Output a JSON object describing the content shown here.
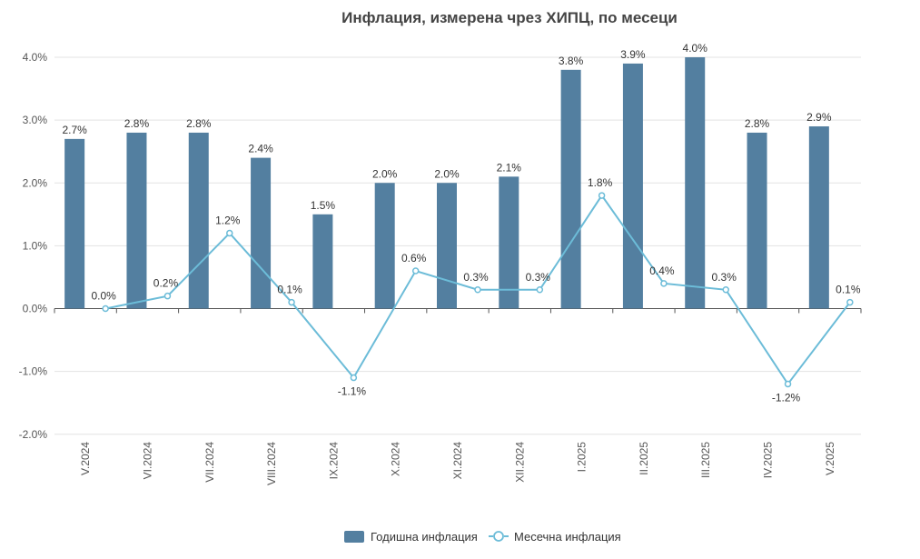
{
  "chart_data": {
    "type": "bar",
    "title": "Инфлация, измерена чрез ХИПЦ, по месеци",
    "categories": [
      "V.2024",
      "VI.2024",
      "VII.2024",
      "VIII.2024",
      "IX.2024",
      "X.2024",
      "XI.2024",
      "XII.2024",
      "I.2025",
      "II.2025",
      "III.2025",
      "IV.2025",
      "V.2025"
    ],
    "ylim": [
      -2.0,
      4.0
    ],
    "yticks": [
      "4.0%",
      "3.0%",
      "2.0%",
      "1.0%",
      "0.0%",
      "-1.0%",
      "-2.0%"
    ],
    "ytick_values": [
      4.0,
      3.0,
      2.0,
      1.0,
      0.0,
      -1.0,
      -2.0
    ],
    "grid": true,
    "legend_position": "bottom",
    "series": [
      {
        "name": "Годишна инфлация",
        "kind": "bar",
        "color": "#537fa0",
        "values": [
          2.7,
          2.8,
          2.8,
          2.4,
          1.5,
          2.0,
          2.0,
          2.1,
          3.8,
          3.9,
          4.0,
          2.8,
          2.9
        ],
        "labels": [
          "2.7%",
          "2.8%",
          "2.8%",
          "2.4%",
          "1.5%",
          "2.0%",
          "2.0%",
          "2.1%",
          "3.8%",
          "3.9%",
          "4.0%",
          "2.8%",
          "2.9%"
        ]
      },
      {
        "name": "Месечна инфлация",
        "kind": "line",
        "color": "#6cbcd8",
        "values": [
          0.0,
          0.2,
          1.2,
          0.1,
          -1.1,
          0.6,
          0.3,
          0.3,
          1.8,
          0.4,
          0.3,
          -1.2,
          0.1
        ],
        "labels": [
          "0.0%",
          "0.2%",
          "1.2%",
          "0.1%",
          "-1.1%",
          "0.6%",
          "0.3%",
          "0.3%",
          "1.8%",
          "0.4%",
          "0.3%",
          "-1.2%",
          "0.1%"
        ]
      }
    ]
  }
}
